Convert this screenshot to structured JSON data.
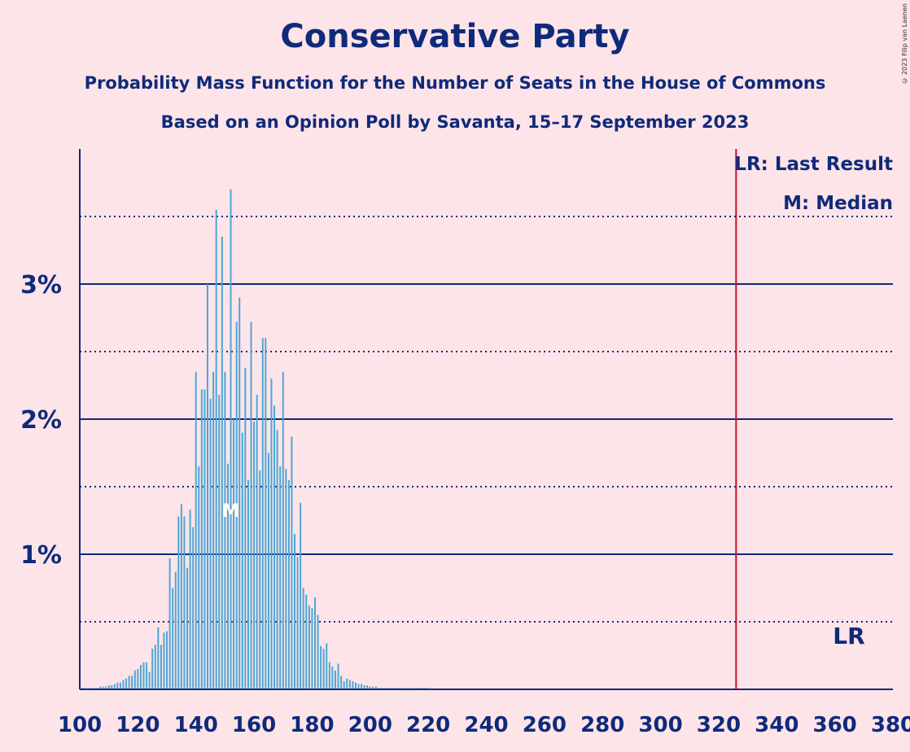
{
  "title": "Conservative Party",
  "subtitle1": "Probability Mass Function for the Number of Seats in the House of Commons",
  "subtitle2": "Based on an Opinion Poll by Savanta, 15–17 September 2023",
  "copyright": "© 2023 Filip van Laenen",
  "legend": {
    "last_result": "LR: Last Result",
    "median": "M: Median"
  },
  "markers": {
    "last_result_label": "LR",
    "median_label": "M"
  },
  "colors": {
    "background": "#fde4e8",
    "axis": "#0f2a7a",
    "bar": "#4aa6d6",
    "last_result_line": "#c8102e"
  },
  "chart_data": {
    "type": "bar",
    "title": "Conservative Party",
    "xlabel": "",
    "ylabel": "",
    "xlim": [
      100,
      380
    ],
    "ylim": [
      0,
      4
    ],
    "x_ticks": [
      100,
      120,
      140,
      160,
      180,
      200,
      220,
      240,
      260,
      280,
      300,
      320,
      340,
      360,
      380
    ],
    "y_ticks": [
      {
        "value": 1,
        "label": "1%"
      },
      {
        "value": 2,
        "label": "2%"
      },
      {
        "value": 3,
        "label": "3%"
      }
    ],
    "minor_gridlines": [
      0.5,
      1.5,
      2.5,
      3.5
    ],
    "last_result": 326,
    "median": 152,
    "x": [
      101,
      102,
      103,
      104,
      105,
      106,
      107,
      108,
      109,
      110,
      111,
      112,
      113,
      114,
      115,
      116,
      117,
      118,
      119,
      120,
      121,
      122,
      123,
      124,
      125,
      126,
      127,
      128,
      129,
      130,
      131,
      132,
      133,
      134,
      135,
      136,
      137,
      138,
      139,
      140,
      141,
      142,
      143,
      144,
      145,
      146,
      147,
      148,
      149,
      150,
      151,
      152,
      153,
      154,
      155,
      156,
      157,
      158,
      159,
      160,
      161,
      162,
      163,
      164,
      165,
      166,
      167,
      168,
      169,
      170,
      171,
      172,
      173,
      174,
      175,
      176,
      177,
      178,
      179,
      180,
      181,
      182,
      183,
      184,
      185,
      186,
      187,
      188,
      189,
      190,
      191,
      192,
      193,
      194,
      195,
      196,
      197,
      198,
      199,
      200,
      201,
      202,
      203,
      204,
      205,
      206,
      207,
      208,
      209,
      210,
      211,
      212,
      213,
      214,
      215,
      216,
      217,
      218,
      219,
      220
    ],
    "values": [
      0.01,
      0.01,
      0.01,
      0.01,
      0.01,
      0.01,
      0.02,
      0.02,
      0.02,
      0.03,
      0.03,
      0.04,
      0.05,
      0.05,
      0.07,
      0.08,
      0.1,
      0.1,
      0.14,
      0.15,
      0.18,
      0.2,
      0.2,
      0.13,
      0.3,
      0.33,
      0.46,
      0.33,
      0.42,
      0.43,
      0.97,
      0.75,
      0.87,
      1.28,
      1.37,
      1.28,
      0.9,
      1.33,
      1.2,
      2.35,
      1.65,
      2.22,
      2.22,
      3.0,
      2.15,
      2.35,
      3.55,
      2.18,
      3.35,
      2.35,
      1.67,
      3.7,
      2.0,
      2.72,
      2.9,
      1.9,
      2.38,
      1.55,
      2.72,
      1.98,
      2.18,
      1.62,
      2.6,
      2.6,
      1.75,
      2.3,
      2.1,
      1.92,
      1.65,
      2.35,
      1.63,
      1.55,
      1.87,
      1.15,
      0.98,
      1.38,
      0.75,
      0.7,
      0.62,
      0.6,
      0.68,
      0.55,
      0.32,
      0.3,
      0.34,
      0.2,
      0.17,
      0.14,
      0.19,
      0.1,
      0.06,
      0.08,
      0.07,
      0.06,
      0.05,
      0.04,
      0.04,
      0.03,
      0.03,
      0.02,
      0.02,
      0.02,
      0.01,
      0.01,
      0.01,
      0.01,
      0.01,
      0.01,
      0.01,
      0.01,
      0.01,
      0.01,
      0.01,
      0.01,
      0.01,
      0.01,
      0.01,
      0.01,
      0.01,
      0.01
    ]
  }
}
